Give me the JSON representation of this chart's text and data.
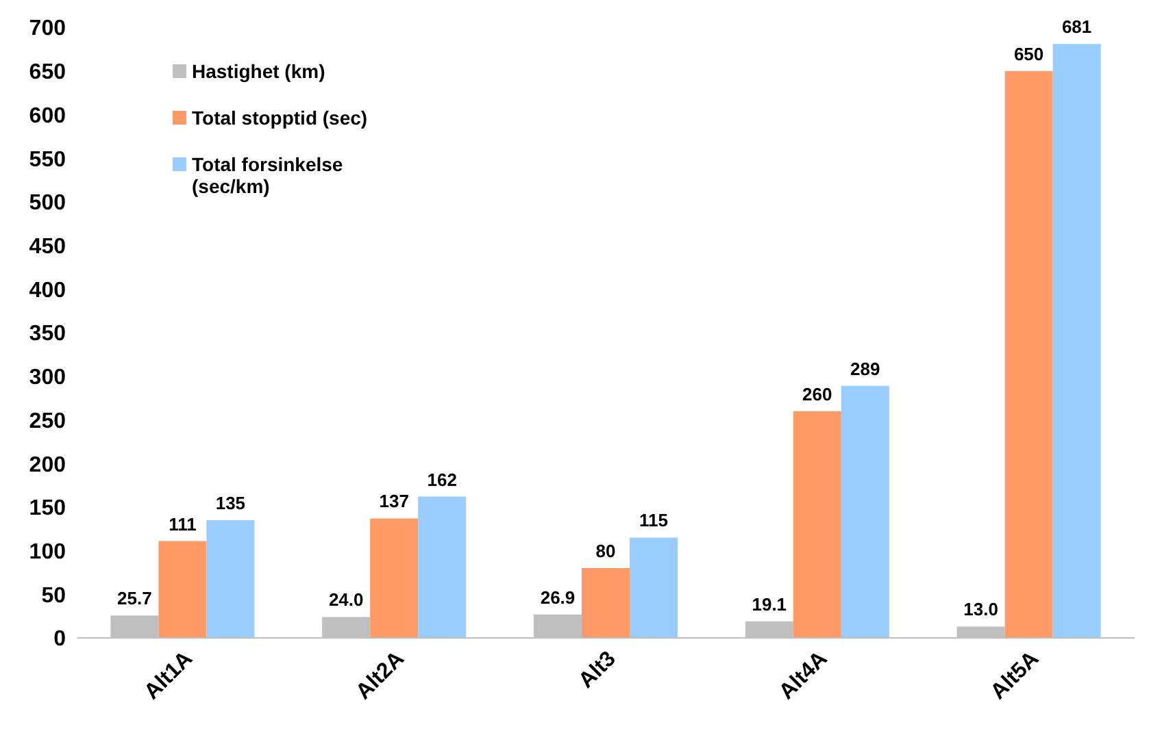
{
  "chart_data": {
    "type": "bar",
    "categories": [
      "Alt1A",
      "Alt2A",
      "Alt3",
      "Alt4A",
      "Alt5A"
    ],
    "series": [
      {
        "name": "Hastighet (km)",
        "color": "#bfbfbf",
        "values": [
          25.7,
          24.0,
          26.9,
          19.1,
          13.0
        ],
        "value_labels": [
          "25.7",
          "24.0",
          "26.9",
          "19.1",
          "13.0"
        ]
      },
      {
        "name": "Total stopptid (sec)",
        "color": "#ff9966",
        "values": [
          111,
          137,
          80,
          260,
          650
        ],
        "value_labels": [
          "111",
          "137",
          "80",
          "260",
          "650"
        ]
      },
      {
        "name": "Total forsinkelse (sec/km)",
        "color": "#99ccff",
        "values": [
          135,
          162,
          115,
          289,
          681
        ],
        "value_labels": [
          "135",
          "162",
          "115",
          "289",
          "681"
        ]
      }
    ],
    "ylim": [
      0,
      700
    ],
    "yticks": [
      0,
      50,
      100,
      150,
      200,
      250,
      300,
      350,
      400,
      450,
      500,
      550,
      600,
      650,
      700
    ],
    "grid": false,
    "legend": "top left"
  }
}
